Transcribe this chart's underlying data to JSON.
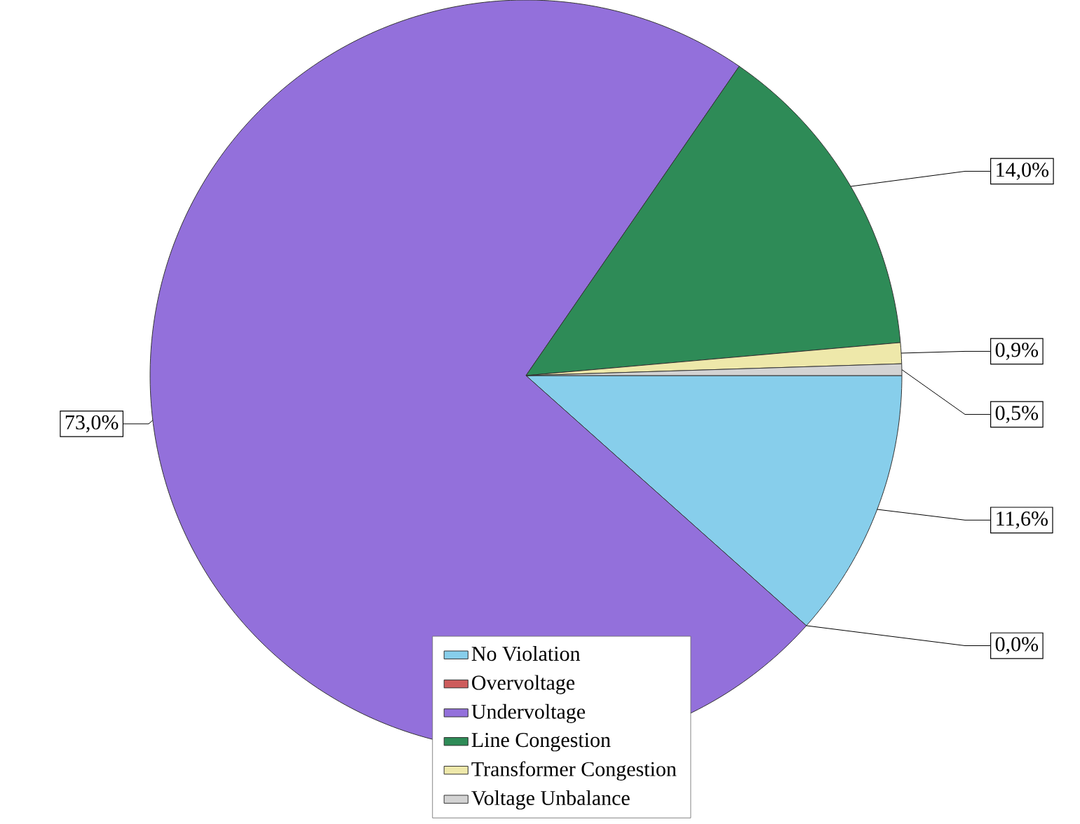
{
  "chart_data": {
    "type": "pie",
    "categories": [
      "No Violation",
      "Overvoltage",
      "Undervoltage",
      "Line Congestion",
      "Transformer Congestion",
      "Voltage Unbalance"
    ],
    "values": [
      11.6,
      0.0,
      73.0,
      14.0,
      0.9,
      0.5
    ],
    "value_labels": [
      "11,6%",
      "0,0%",
      "73,0%",
      "14,0%",
      "0,9%",
      "0,5%"
    ],
    "colors": [
      "#87ceeb",
      "#cd5c5c",
      "#9370db",
      "#2e8b57",
      "#eee8aa",
      "#d3d3d3"
    ],
    "legend": "bottom"
  }
}
